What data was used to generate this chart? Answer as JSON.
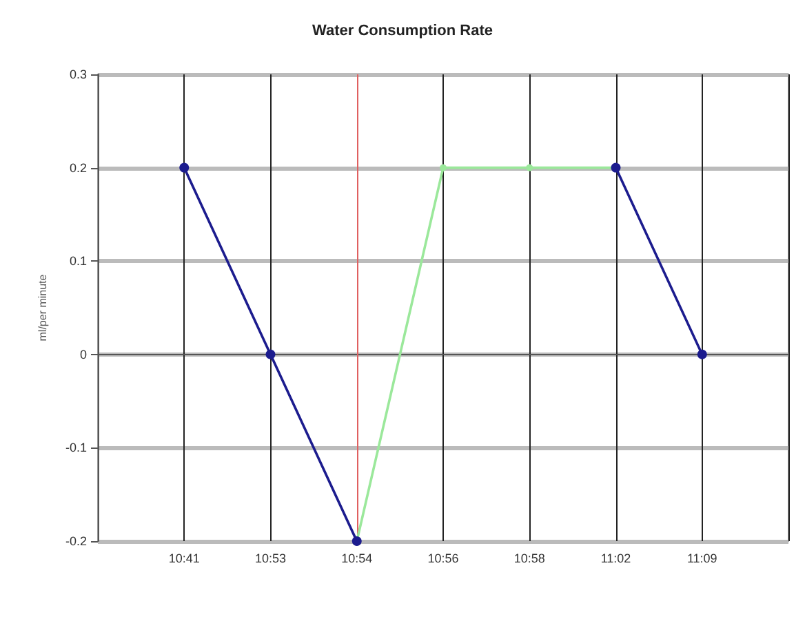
{
  "chart_data": {
    "type": "line",
    "title": "Water Consumption Rate",
    "ylabel": "ml/per minute",
    "categories": [
      null,
      "10:41",
      "10:53",
      "10:54",
      "10:56",
      "10:58",
      "11:02",
      "11:09",
      null
    ],
    "series": [
      {
        "color": "#1c1c8e",
        "values": [
          null,
          0.2,
          0,
          -0.2,
          null,
          null,
          0.2,
          0,
          null
        ]
      },
      {
        "color": "#9be89b",
        "values": [
          null,
          null,
          null,
          -0.2,
          0.2,
          0.2,
          0.2,
          null,
          null
        ]
      }
    ],
    "ylim": [
      -0.2,
      0.3
    ],
    "yticks": [
      -0.2,
      -0.1,
      0,
      0.1,
      0.2,
      0.3
    ],
    "ref_lines": [
      {
        "axis": "x",
        "value": "10:54",
        "color": "#e06060"
      }
    ],
    "grid": true,
    "marker": "circle",
    "line_style": "solid"
  }
}
